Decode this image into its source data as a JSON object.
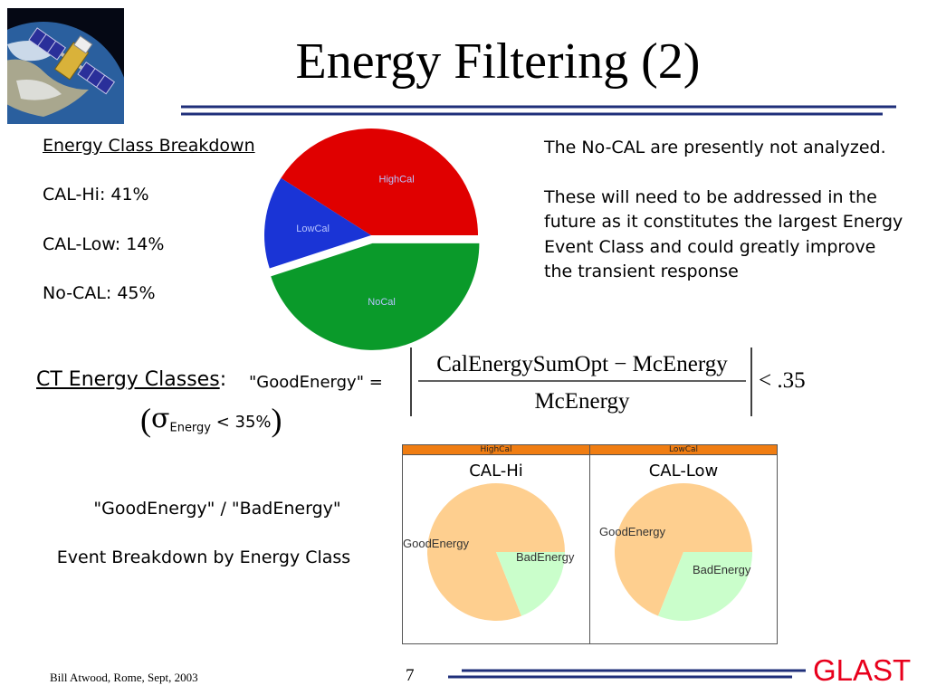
{
  "title": "Energy Filtering (2)",
  "breakdown": {
    "heading": "Energy Class Breakdown",
    "cal_hi": "CAL-Hi:  41%",
    "cal_low": "CAL-Low: 14%",
    "no_cal": "No-CAL:   45%"
  },
  "main_pie": {
    "slices": [
      {
        "label": "HighCal",
        "value": 41,
        "color": "#e00000"
      },
      {
        "label": "LowCal",
        "value": 14,
        "color": "#1a34d6"
      },
      {
        "label": "NoCal",
        "value": 45,
        "color": "#0a9a2a"
      }
    ]
  },
  "note": {
    "p1": "The No-CAL are presently not analyzed.",
    "p2": "These will need to be addressed in the future as it constitutes the largest Energy Event Class and could greatly improve the transient response"
  },
  "ct": {
    "label": "CT Energy Classes",
    "colon": ":",
    "goodenergy_eq": "\"GoodEnergy\" =",
    "sigma": "σ",
    "sigma_sub": "Energy",
    "sigma_rest": " < 35%",
    "paren_open": "(",
    "paren_close": ")"
  },
  "formula": {
    "numerator": "CalEnergySumOpt − McEnergy",
    "denominator": "McEnergy",
    "rhs": "< .35"
  },
  "good_bad": "\"GoodEnergy\" / \"BadEnergy\"",
  "event_breakdown": "Event Breakdown by Energy Class",
  "small_pies": [
    {
      "header": "HighCal",
      "title": "CAL-Hi",
      "slices": [
        {
          "label": "GoodEnergy",
          "value": 81,
          "color": "#fecf8f"
        },
        {
          "label": "BadEnergy",
          "value": 19,
          "color": "#cafecb"
        }
      ]
    },
    {
      "header": "LowCal",
      "title": "CAL-Low",
      "slices": [
        {
          "label": "GoodEnergy",
          "value": 69,
          "color": "#fecf8f"
        },
        {
          "label": "BadEnergy",
          "value": 31,
          "color": "#cafecb"
        }
      ]
    }
  ],
  "footer": {
    "author": "Bill Atwood,  Rome, Sept, 2003",
    "page": "7",
    "brand": "GLAST",
    "brand_color": "#e8001c"
  },
  "icons": {
    "logo": "satellite-earth-logo"
  }
}
